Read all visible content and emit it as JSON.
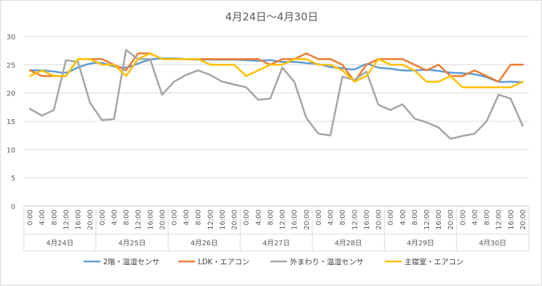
{
  "chart_data": {
    "type": "line",
    "title": "4月24日～4月30日",
    "xlabel": "",
    "ylabel": "",
    "ylim": [
      0,
      30
    ],
    "y_ticks": [
      0,
      5,
      10,
      15,
      20,
      25,
      30
    ],
    "grid": "horizontal",
    "legend_position": "bottom",
    "time_labels": [
      "0:00",
      "4:00",
      "8:00",
      "12:00",
      "16:00",
      "20:00"
    ],
    "days": [
      "4月24日",
      "4月25日",
      "4月26日",
      "4月27日",
      "4月28日",
      "4月29日",
      "4月30日"
    ],
    "series": [
      {
        "name": "2階・温湿センサ",
        "color": "#5b9bd5",
        "smooth": true,
        "values": [
          24,
          24,
          23.8,
          23.6,
          24.5,
          25.2,
          25.3,
          24.7,
          24.5,
          25.2,
          25.9,
          26.1,
          26.1,
          26,
          25.9,
          25.9,
          25.9,
          25.9,
          25.8,
          25.7,
          25.8,
          25.5,
          25.5,
          25.3,
          25.1,
          24.6,
          24.4,
          24.2,
          25.1,
          24.5,
          24.3,
          24,
          24,
          24.1,
          23.9,
          23.6,
          23.5,
          23.3,
          22.8,
          22,
          22,
          21.9
        ]
      },
      {
        "name": "LDK・エアコン",
        "color": "#ed7d31",
        "smooth": false,
        "values": [
          24,
          23,
          23,
          23,
          26,
          26,
          26,
          25,
          24,
          27,
          27,
          26,
          26,
          26,
          26,
          26,
          26,
          26,
          26,
          26,
          25,
          26,
          26,
          27,
          26,
          26,
          25,
          22,
          25,
          26,
          26,
          26,
          25,
          24,
          25,
          23,
          23,
          24,
          23,
          22,
          25,
          25
        ]
      },
      {
        "name": "外まわり・温湿センサ",
        "color": "#a5a5a5",
        "smooth": false,
        "values": [
          17.2,
          16,
          17,
          25.8,
          25.5,
          18.3,
          15.2,
          15.4,
          27.6,
          26,
          26,
          19.7,
          22,
          23.2,
          24,
          23.2,
          22,
          21.5,
          21,
          18.8,
          19,
          24.5,
          22,
          15.6,
          12.8,
          12.5,
          22.9,
          22.3,
          23.8,
          17.9,
          17,
          18,
          15.5,
          14.8,
          13.9,
          11.9,
          12.4,
          12.8,
          15,
          19.7,
          19,
          14.2
        ]
      },
      {
        "name": "主寝室・エアコン",
        "color": "#ffc000",
        "smooth": false,
        "values": [
          23,
          24,
          23,
          23,
          26,
          26,
          25,
          25,
          23,
          26,
          27,
          26,
          26,
          26,
          26,
          25,
          25,
          25,
          23,
          24,
          25,
          25,
          26,
          26,
          25,
          25,
          24,
          22,
          23,
          26,
          25,
          25,
          24,
          22,
          22,
          23,
          21,
          21,
          21,
          21,
          21,
          22
        ]
      }
    ]
  }
}
